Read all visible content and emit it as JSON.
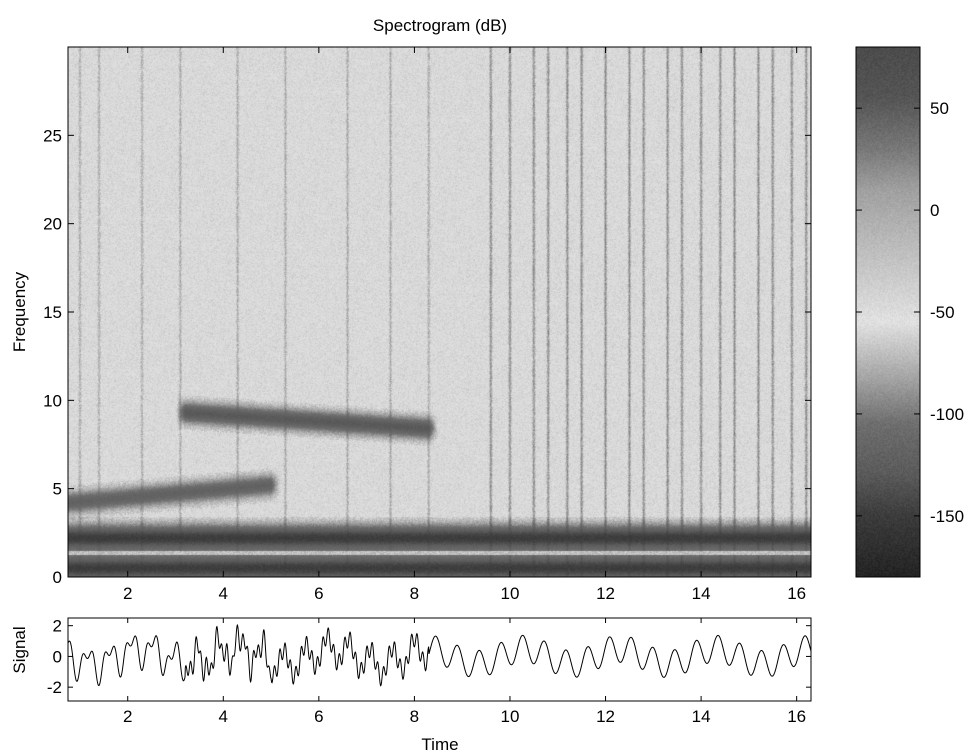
{
  "chart_data": [
    {
      "type": "heatmap",
      "title": "Spectrogram (dB)",
      "xlabel": "",
      "ylabel": "Frequency",
      "xlim": [
        0.75,
        16.3
      ],
      "ylim": [
        0,
        30
      ],
      "x_ticks": [
        2,
        4,
        6,
        8,
        10,
        12,
        14,
        16
      ],
      "y_ticks": [
        0,
        5,
        10,
        15,
        20,
        25
      ],
      "grid": false,
      "colormap": "gray",
      "background_level_db": -55,
      "bands": [
        {
          "name": "",
          "t_start": 0.75,
          "t_end": 5.0,
          "f_start": 4.2,
          "f_end": 5.2,
          "level_db": -120
        },
        {
          "name": "",
          "t_start": 3.2,
          "t_end": 8.3,
          "f_start": 9.3,
          "f_end": 8.4,
          "level_db": -130
        },
        {
          "name": "",
          "t_start": 0.75,
          "t_end": 16.3,
          "f_start": 2.2,
          "f_end": 2.2,
          "level_db": -150
        },
        {
          "name": "",
          "t_start": 0.75,
          "t_end": 16.3,
          "f_start": 0.5,
          "f_end": 0.5,
          "level_db": -150
        }
      ],
      "vertical_striations_time": [
        1.0,
        1.4,
        2.3,
        3.1,
        4.3,
        5.3,
        6.6,
        7.5,
        8.3,
        9.6,
        10.0,
        10.5,
        10.8,
        11.2,
        11.5,
        12.0,
        12.5,
        12.8,
        13.3,
        13.6,
        14.0,
        14.4,
        14.7,
        15.2,
        15.5,
        15.9,
        16.2
      ]
    },
    {
      "type": "colorbar",
      "tick_values": [
        50,
        0,
        -50,
        -100,
        -150
      ],
      "tick_labels": [
        "50",
        "0",
        "-50",
        "-100",
        "-150"
      ],
      "range_db": [
        -180,
        80
      ],
      "stops": [
        {
          "db": 80,
          "gray": 75
        },
        {
          "db": 55,
          "gray": 85
        },
        {
          "db": 30,
          "gray": 120
        },
        {
          "db": 10,
          "gray": 160
        },
        {
          "db": -30,
          "gray": 200
        },
        {
          "db": -55,
          "gray": 225
        },
        {
          "db": -80,
          "gray": 170
        },
        {
          "db": -105,
          "gray": 110
        },
        {
          "db": -130,
          "gray": 90
        },
        {
          "db": -150,
          "gray": 60
        },
        {
          "db": -180,
          "gray": 35
        }
      ]
    },
    {
      "type": "line",
      "xlabel": "Time",
      "ylabel": "Signal",
      "xlim": [
        0.75,
        16.3
      ],
      "ylim": [
        -2.9,
        2.5
      ],
      "x_ticks": [
        2,
        4,
        6,
        8,
        10,
        12,
        14,
        16
      ],
      "y_ticks": [
        -2,
        0,
        2
      ],
      "grid": false,
      "series": [
        {
          "name": "",
          "components": [
            {
              "amplitude": 1.0,
              "t_start": 0.75,
              "t_end": 5.0,
              "freq_start": 4.2,
              "freq_end": 5.2
            },
            {
              "amplitude": 1.0,
              "t_start": 3.2,
              "t_end": 8.3,
              "freq_start": 9.3,
              "freq_end": 8.4
            },
            {
              "amplitude": 1.6,
              "t_start": 0.75,
              "t_end": 16.3,
              "freq_start": 2.2,
              "freq_end": 2.2
            },
            {
              "amplitude": 0.9,
              "t_start": 0.75,
              "t_end": 16.3,
              "freq_start": 0.5,
              "freq_end": 0.5
            }
          ]
        }
      ]
    }
  ]
}
